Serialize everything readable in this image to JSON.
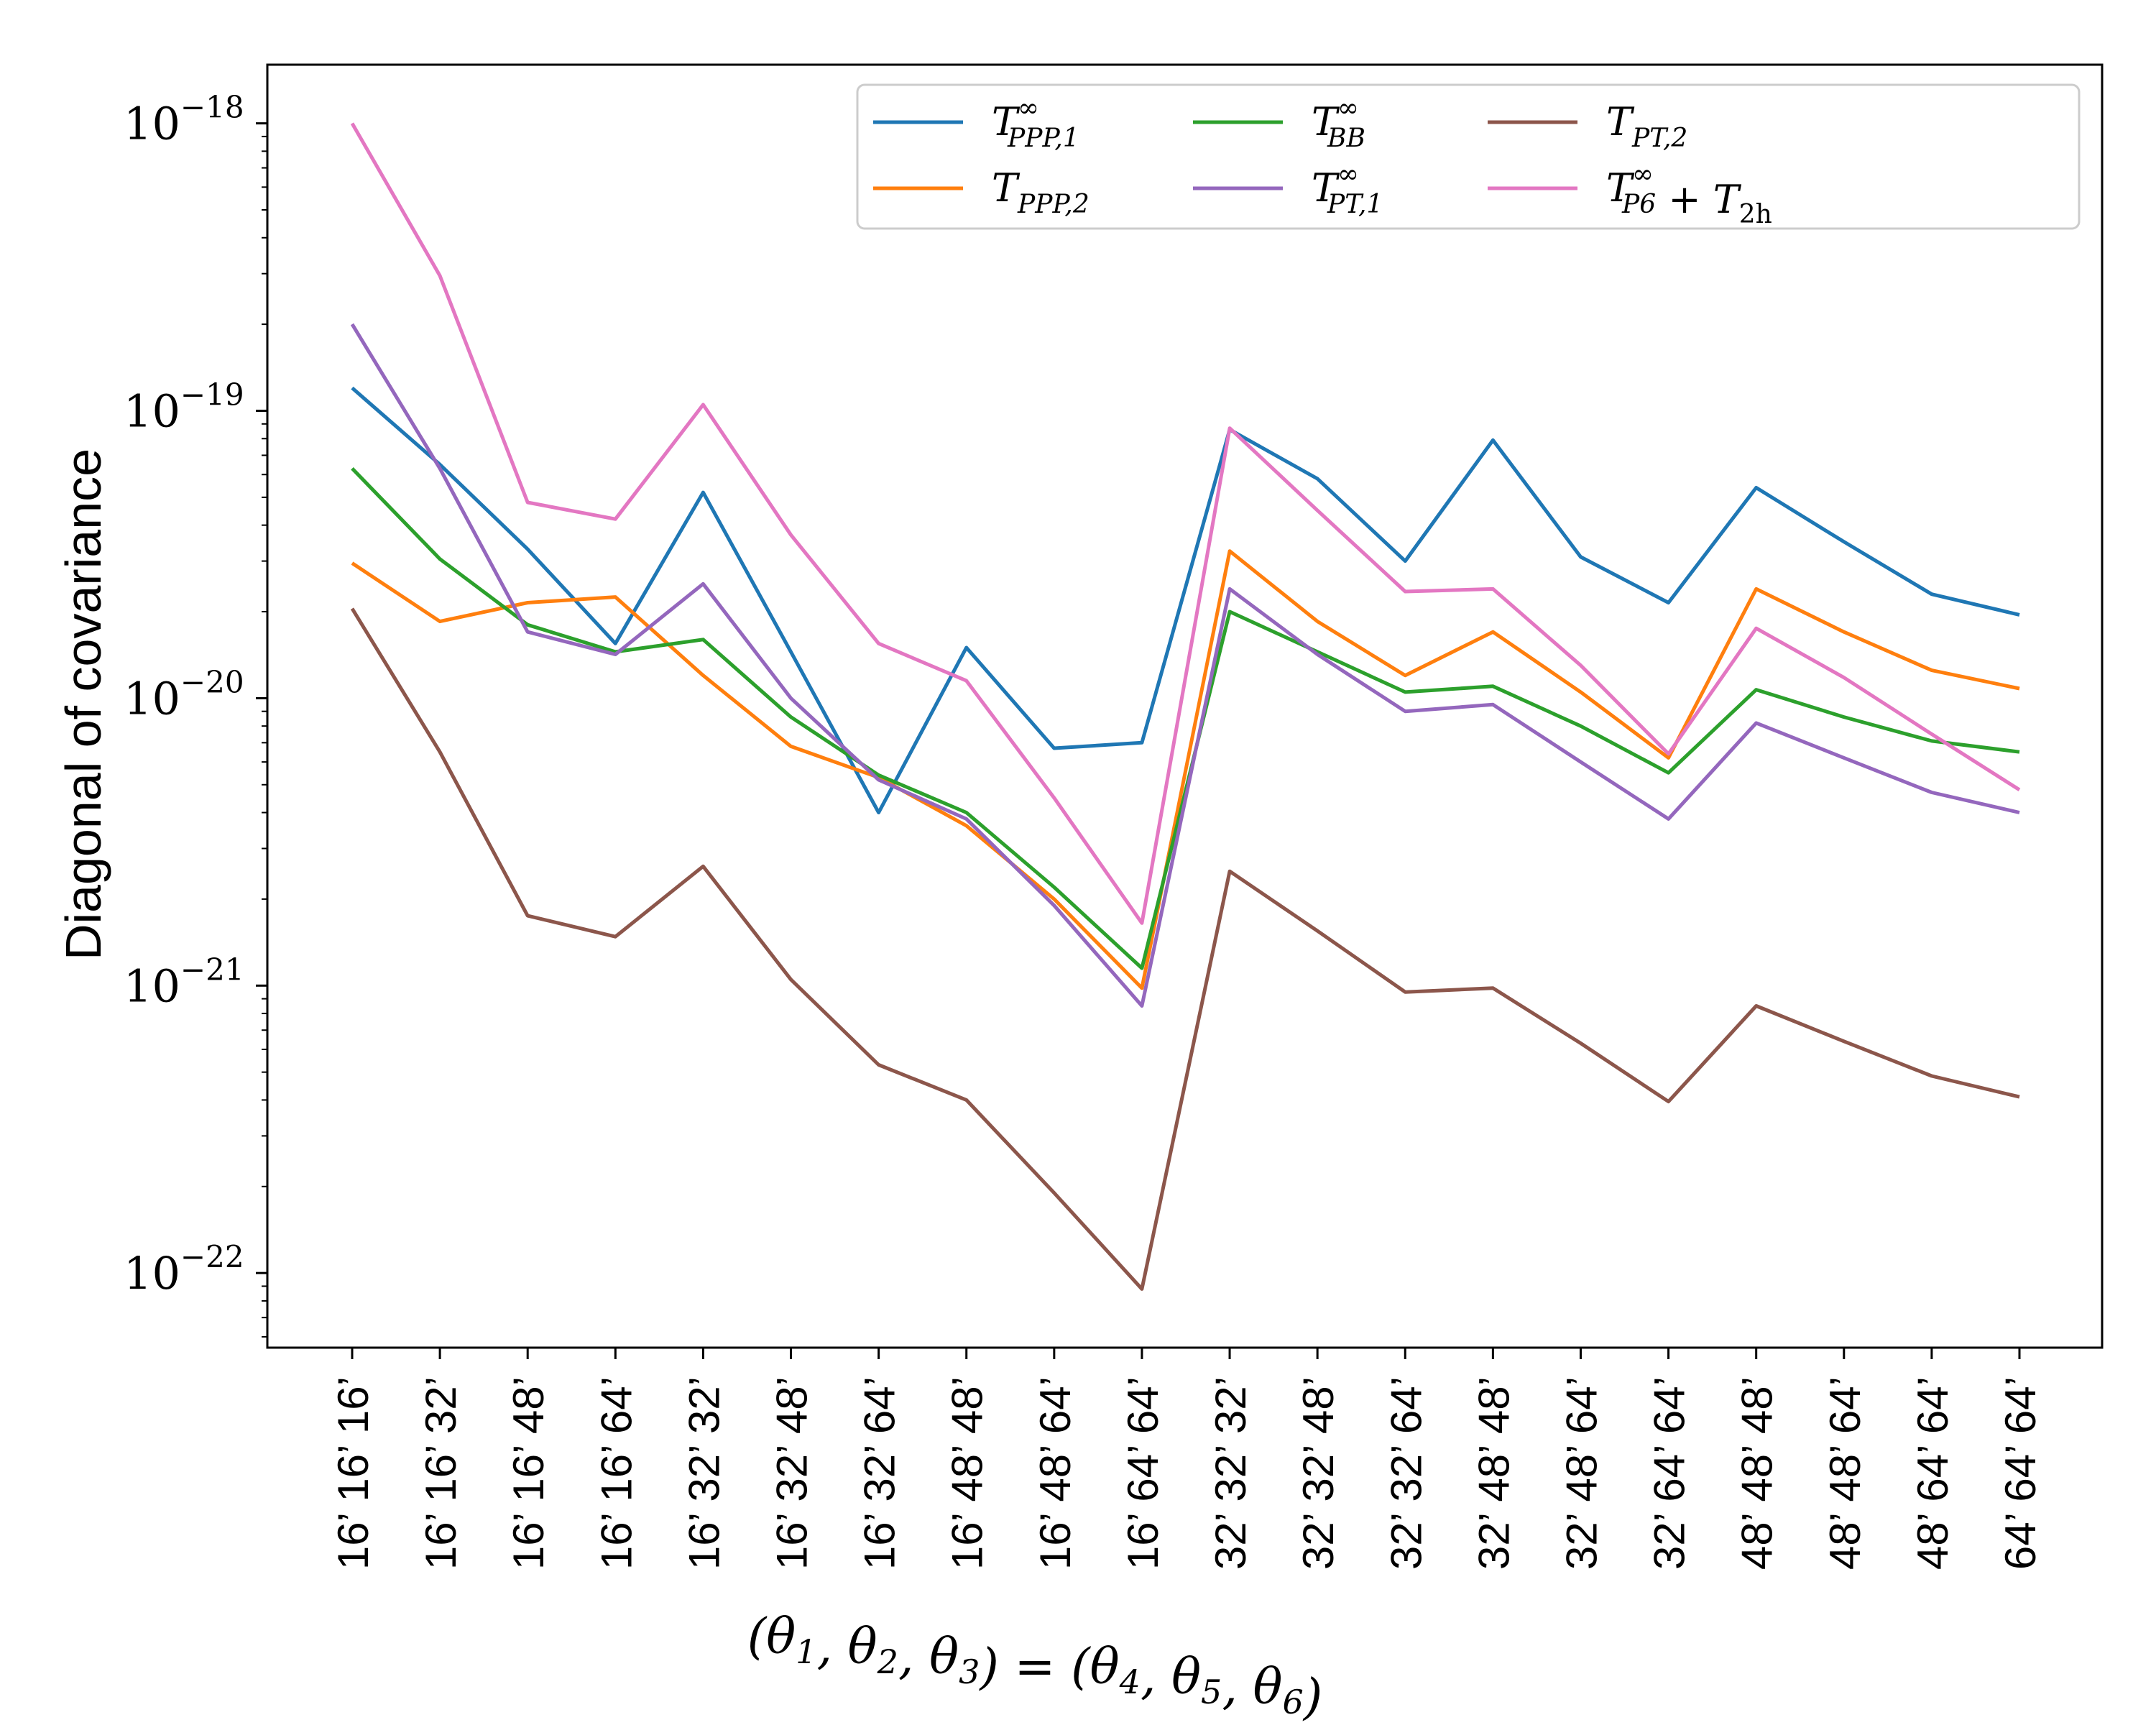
{
  "chart_data": {
    "type": "line",
    "yscale": "log",
    "ylim": [
      5.5e-23,
      1.6e-18
    ],
    "yticks": [
      {
        "value": 1e-22,
        "base": "10",
        "exp": "−22"
      },
      {
        "value": 1e-21,
        "base": "10",
        "exp": "−21"
      },
      {
        "value": 1e-20,
        "base": "10",
        "exp": "−20"
      },
      {
        "value": 1e-19,
        "base": "10",
        "exp": "−19"
      },
      {
        "value": 1e-18,
        "base": "10",
        "exp": "−18"
      }
    ],
    "ylabel": "Diagonal of covariance",
    "xlabel": "(θ1, θ2, θ3) = (θ4, θ5, θ6)",
    "categories": [
      "16’ 16’ 16’",
      "16’ 16’ 32’",
      "16’ 16’ 48’",
      "16’ 16’ 64’",
      "16’ 32’ 32’",
      "16’ 32’ 48’",
      "16’ 32’ 64’",
      "16’ 48’ 48’",
      "16’ 48’ 64’",
      "16’ 64’ 64’",
      "32’ 32’ 32’",
      "32’ 32’ 48’",
      "32’ 32’ 64’",
      "32’ 48’ 48’",
      "32’ 48’ 64’",
      "32’ 64’ 64’",
      "48’ 48’ 48’",
      "48’ 48’ 64’",
      "48’ 64’ 64’",
      "64’ 64’ 64’"
    ],
    "series": [
      {
        "name": "T∞ PPP,1",
        "legend_main": "T",
        "legend_sup": "∞",
        "legend_sub": "PPP,1",
        "legend_tail": "",
        "color": "#1f77b4",
        "values": [
          1.2e-19,
          6.5e-20,
          3.3e-20,
          1.55e-20,
          5.2e-20,
          1.45e-20,
          4e-21,
          1.5e-20,
          6.7e-21,
          7e-21,
          8.6e-20,
          5.8e-20,
          3e-20,
          7.9e-20,
          3.1e-20,
          2.15e-20,
          5.4e-20,
          3.5e-20,
          2.3e-20,
          1.95e-20
        ]
      },
      {
        "name": "T PPP,2",
        "legend_main": "T",
        "legend_sup": "",
        "legend_sub": "PPP,2",
        "legend_tail": "",
        "color": "#ff7f0e",
        "values": [
          2.95e-20,
          1.85e-20,
          2.15e-20,
          2.25e-20,
          1.2e-20,
          6.8e-21,
          5.3e-21,
          3.6e-21,
          2e-21,
          9.8e-22,
          3.25e-20,
          1.85e-20,
          1.2e-20,
          1.7e-20,
          1.05e-20,
          6.2e-21,
          2.4e-20,
          1.7e-20,
          1.25e-20,
          1.08e-20
        ]
      },
      {
        "name": "T∞ BB",
        "legend_main": "T",
        "legend_sup": "∞",
        "legend_sub": "BB",
        "legend_tail": "",
        "color": "#2ca02c",
        "values": [
          6.3e-20,
          3.05e-20,
          1.8e-20,
          1.45e-20,
          1.6e-20,
          8.6e-21,
          5.4e-21,
          4e-21,
          2.2e-21,
          1.15e-21,
          2e-20,
          1.45e-20,
          1.05e-20,
          1.1e-20,
          8e-21,
          5.5e-21,
          1.07e-20,
          8.6e-21,
          7.1e-21,
          6.5e-21
        ]
      },
      {
        "name": "T∞ PT,1",
        "legend_main": "T",
        "legend_sup": "∞",
        "legend_sub": "PT,1",
        "legend_tail": "",
        "color": "#9467bd",
        "values": [
          2e-19,
          6.3e-20,
          1.7e-20,
          1.42e-20,
          2.5e-20,
          1e-20,
          5.2e-21,
          3.8e-21,
          1.9e-21,
          8.5e-22,
          2.4e-20,
          1.42e-20,
          9e-21,
          9.5e-21,
          6e-21,
          3.8e-21,
          8.2e-21,
          6.2e-21,
          4.7e-21,
          4e-21
        ]
      },
      {
        "name": "T PT,2",
        "legend_main": "T",
        "legend_sup": "",
        "legend_sub": "PT,2",
        "legend_tail": "",
        "color": "#8c564b",
        "values": [
          2.05e-20,
          6.5e-21,
          1.75e-21,
          1.48e-21,
          2.6e-21,
          1.05e-21,
          5.3e-22,
          4e-22,
          1.9e-22,
          8.8e-23,
          2.5e-21,
          1.55e-21,
          9.5e-22,
          9.8e-22,
          6.3e-22,
          3.95e-22,
          8.5e-22,
          6.4e-22,
          4.85e-22,
          4.1e-22
        ]
      },
      {
        "name": "T∞ P6 + T2h",
        "legend_main": "T",
        "legend_sup": "∞",
        "legend_sub": "P6",
        "legend_tail": " + T",
        "legend_tail_sub": "2h",
        "color": "#e377c2",
        "values": [
          1e-18,
          2.95e-19,
          4.8e-20,
          4.2e-20,
          1.05e-19,
          3.7e-20,
          1.55e-20,
          1.15e-20,
          4.5e-21,
          1.65e-21,
          8.7e-20,
          4.5e-20,
          2.35e-20,
          2.4e-20,
          1.3e-20,
          6.4e-21,
          1.75e-20,
          1.18e-20,
          7.5e-21,
          4.8e-21
        ]
      }
    ]
  }
}
